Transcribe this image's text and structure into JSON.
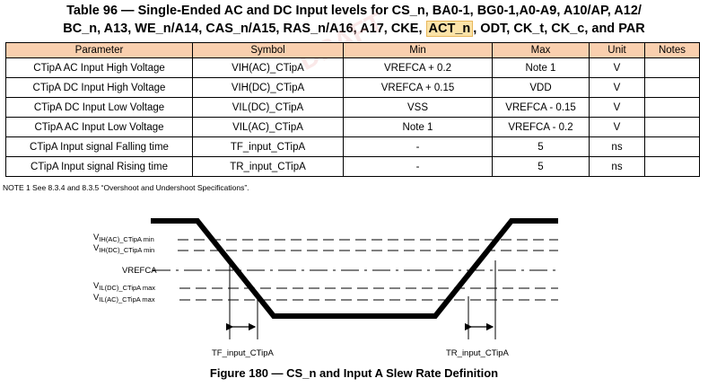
{
  "table": {
    "title_line1": "Table 96 — Single-Ended AC and DC Input levels for CS_n, BA0-1, BG0-1,A0-A9, A10/AP, A12/",
    "title_line2_pre": "BC_n, A13, WE_n/A14, CAS_n/A15, RAS_n/A16, A17, CKE, ",
    "title_line2_highlight": "ACT_n",
    "title_line2_post": ", ODT, CK_t, CK_c, and PAR",
    "headers": [
      "Parameter",
      "Symbol",
      "Min",
      "Max",
      "Unit",
      "Notes"
    ],
    "rows": [
      [
        "CTipA AC Input High Voltage",
        "VIH(AC)_CTipA",
        "VREFCA + 0.2",
        "Note 1",
        "V",
        ""
      ],
      [
        "CTipA DC Input High Voltage",
        "VIH(DC)_CTipA",
        "VREFCA + 0.15",
        "VDD",
        "V",
        ""
      ],
      [
        "CTipA DC Input Low Voltage",
        "VIL(DC)_CTipA",
        "VSS",
        "VREFCA - 0.15",
        "V",
        ""
      ],
      [
        "CTipA AC Input Low Voltage",
        "VIL(AC)_CTipA",
        "Note 1",
        "VREFCA - 0.2",
        "V",
        ""
      ],
      [
        "CTipA Input signal Falling time",
        "TF_input_CTipA",
        "-",
        "5",
        "ns",
        ""
      ],
      [
        "CTipA Input signal Rising time",
        "TR_input_CTipA",
        "-",
        "5",
        "ns",
        ""
      ]
    ],
    "note": "NOTE 1   See 8.3.4 and 8.3.5 “Overshoot and Undershoot Specifications”."
  },
  "figure": {
    "labels": {
      "vih_ac_main": "V",
      "vih_ac_sub": "IH(AC)_CTipA min",
      "vih_dc_main": "V",
      "vih_dc_sub": "IH(DC)_CTipA min",
      "vrefca": "VREFCA",
      "vil_dc_main": "V",
      "vil_dc_sub": "IL(DC)_CTipA max",
      "vil_ac_main": "V",
      "vil_ac_sub": "IL(AC)_CTipA max",
      "tf": "TF_input_CTipA",
      "tr": "TR_input_CTipA"
    },
    "caption": "Figure 180 — CS_n and Input A Slew Rate Definition"
  },
  "watermark": "DRAFT"
}
